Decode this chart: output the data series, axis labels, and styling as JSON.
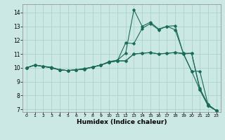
{
  "xlabel": "Humidex (Indice chaleur)",
  "bg_color": "#cce8e4",
  "grid_color": "#aad4cc",
  "line_color": "#1a6b5a",
  "xlim": [
    -0.5,
    23.5
  ],
  "ylim": [
    6.8,
    14.6
  ],
  "yticks": [
    7,
    8,
    9,
    10,
    11,
    12,
    13,
    14
  ],
  "xticks": [
    0,
    1,
    2,
    3,
    4,
    5,
    6,
    7,
    8,
    9,
    10,
    11,
    12,
    13,
    14,
    15,
    16,
    17,
    18,
    19,
    20,
    21,
    22,
    23
  ],
  "line1_x": [
    0,
    1,
    2,
    3,
    4,
    5,
    6,
    7,
    8,
    9,
    10,
    11,
    12,
    13,
    14,
    15,
    16,
    17,
    18,
    19,
    20,
    21,
    22,
    23
  ],
  "line1_y": [
    10.0,
    10.2,
    10.1,
    10.0,
    9.85,
    9.8,
    9.85,
    9.9,
    10.05,
    10.2,
    10.45,
    10.55,
    11.05,
    14.2,
    13.0,
    13.3,
    12.8,
    13.0,
    12.75,
    11.05,
    11.05,
    8.5,
    7.35,
    6.9
  ],
  "line2_x": [
    0,
    1,
    2,
    3,
    4,
    5,
    6,
    7,
    8,
    9,
    10,
    11,
    12,
    13,
    14,
    15,
    16,
    17,
    18,
    19,
    20,
    21,
    22,
    23
  ],
  "line2_y": [
    10.0,
    10.2,
    10.1,
    10.0,
    9.85,
    9.8,
    9.85,
    9.9,
    10.05,
    10.2,
    10.4,
    10.5,
    11.8,
    11.75,
    12.85,
    13.2,
    12.75,
    13.0,
    13.05,
    11.0,
    11.05,
    8.4,
    7.25,
    6.9
  ],
  "line3_x": [
    0,
    1,
    2,
    3,
    4,
    5,
    6,
    7,
    8,
    9,
    10,
    11,
    12,
    13,
    14,
    15,
    16,
    17,
    18,
    19,
    20,
    21,
    22,
    23
  ],
  "line3_y": [
    10.0,
    10.2,
    10.1,
    10.0,
    9.85,
    9.8,
    9.85,
    9.9,
    10.05,
    10.2,
    10.4,
    10.5,
    10.5,
    11.0,
    11.05,
    11.1,
    11.0,
    11.05,
    11.1,
    11.05,
    9.75,
    8.4,
    7.25,
    6.9
  ],
  "line4_x": [
    0,
    1,
    2,
    3,
    4,
    5,
    6,
    7,
    8,
    9,
    10,
    11,
    12,
    13,
    14,
    15,
    16,
    17,
    18,
    19,
    20,
    21,
    22,
    23
  ],
  "line4_y": [
    10.0,
    10.2,
    10.1,
    10.05,
    9.85,
    9.8,
    9.85,
    9.95,
    10.05,
    10.2,
    10.4,
    10.5,
    10.5,
    11.0,
    11.05,
    11.1,
    11.0,
    11.05,
    11.1,
    11.0,
    9.75,
    9.75,
    7.3,
    6.9
  ]
}
